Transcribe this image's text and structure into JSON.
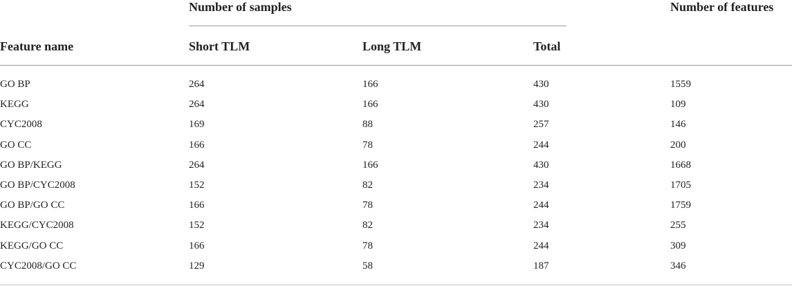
{
  "table": {
    "group_headers": {
      "samples": "Number of samples",
      "features": "Number of features"
    },
    "columns": {
      "feature_name": "Feature name",
      "short_tlm": "Short TLM",
      "long_tlm": "Long TLM",
      "total": "Total"
    },
    "rows": [
      {
        "name": "GO BP",
        "short": "264",
        "long": "166",
        "total": "430",
        "features": "1559"
      },
      {
        "name": "KEGG",
        "short": "264",
        "long": "166",
        "total": "430",
        "features": "109"
      },
      {
        "name": "CYC2008",
        "short": "169",
        "long": "88",
        "total": "257",
        "features": "146"
      },
      {
        "name": "GO CC",
        "short": "166",
        "long": "78",
        "total": "244",
        "features": "200"
      },
      {
        "name": "GO BP/KEGG",
        "short": "264",
        "long": "166",
        "total": "430",
        "features": "1668"
      },
      {
        "name": "GO BP/CYC2008",
        "short": "152",
        "long": "82",
        "total": "234",
        "features": "1705"
      },
      {
        "name": "GO BP/GO CC",
        "short": "166",
        "long": "78",
        "total": "244",
        "features": "1759"
      },
      {
        "name": "KEGG/CYC2008",
        "short": "152",
        "long": "82",
        "total": "234",
        "features": "255"
      },
      {
        "name": "KEGG/GO CC",
        "short": "166",
        "long": "78",
        "total": "244",
        "features": "309"
      },
      {
        "name": "CYC2008/GO CC",
        "short": "129",
        "long": "58",
        "total": "187",
        "features": "346"
      }
    ]
  }
}
